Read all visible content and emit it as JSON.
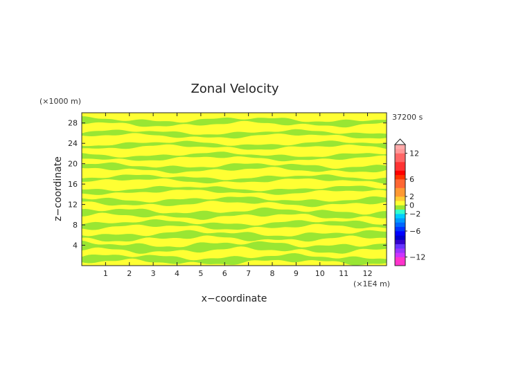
{
  "chart_data": {
    "type": "heatmap",
    "title": "Zonal Velocity",
    "xlabel": "x−coordinate",
    "ylabel": "z−coordinate",
    "x_unit": "(×1E4 m)",
    "y_unit": "(×1000 m)",
    "time_label": "37200 s",
    "xlim": [
      0,
      12.8
    ],
    "ylim": [
      0,
      30
    ],
    "x_ticks": [
      1,
      2,
      3,
      4,
      5,
      6,
      7,
      8,
      9,
      10,
      11,
      12
    ],
    "y_ticks": [
      4,
      8,
      12,
      16,
      20,
      24,
      28
    ],
    "field_colors": {
      "positive": "#ffff33",
      "negative": "#99e633"
    },
    "colorbar": {
      "levels": [
        -14,
        -13,
        -12,
        -11,
        -10,
        -9,
        -8,
        -7,
        -6,
        -5,
        -4,
        -3,
        -2,
        -1,
        0,
        1,
        2,
        3,
        4,
        5,
        6,
        7,
        8,
        9,
        10,
        11,
        12,
        13,
        14
      ],
      "tick_values": [
        -12,
        -6,
        -2,
        0,
        2,
        6,
        12
      ],
      "tick_labels": [
        "−12",
        "−6",
        "−2",
        "0",
        "2",
        "6",
        "12"
      ],
      "colors": [
        "#ff33cc",
        "#ff33cc",
        "#cc33ff",
        "#9933ff",
        "#6633ff",
        "#3300cc",
        "#0000cc",
        "#0000ff",
        "#0033ff",
        "#0066ff",
        "#0099ff",
        "#00ccff",
        "#33ffcc",
        "#99e633",
        "#ffff33",
        "#ffcc33",
        "#ff9933",
        "#ff9933",
        "#ff6633",
        "#ff6633",
        "#ff3300",
        "#ff0000",
        "#ff3333",
        "#ff3333",
        "#ff6666",
        "#ff6666",
        "#ff9999",
        "#ffaaaa"
      ]
    },
    "bands": [
      {
        "z": 1.2,
        "amp": 0.7
      },
      {
        "z": 3.6,
        "amp": 0.8
      },
      {
        "z": 5.8,
        "amp": 0.7
      },
      {
        "z": 8.0,
        "amp": 0.6
      },
      {
        "z": 10.2,
        "amp": 0.7
      },
      {
        "z": 12.6,
        "amp": 0.6
      },
      {
        "z": 14.8,
        "amp": 0.5
      },
      {
        "z": 17.0,
        "amp": 0.5
      },
      {
        "z": 19.2,
        "amp": 0.6
      },
      {
        "z": 21.4,
        "amp": 0.5
      },
      {
        "z": 23.6,
        "amp": 0.5
      },
      {
        "z": 25.8,
        "amp": 0.5
      },
      {
        "z": 28.2,
        "amp": 0.6
      }
    ]
  }
}
